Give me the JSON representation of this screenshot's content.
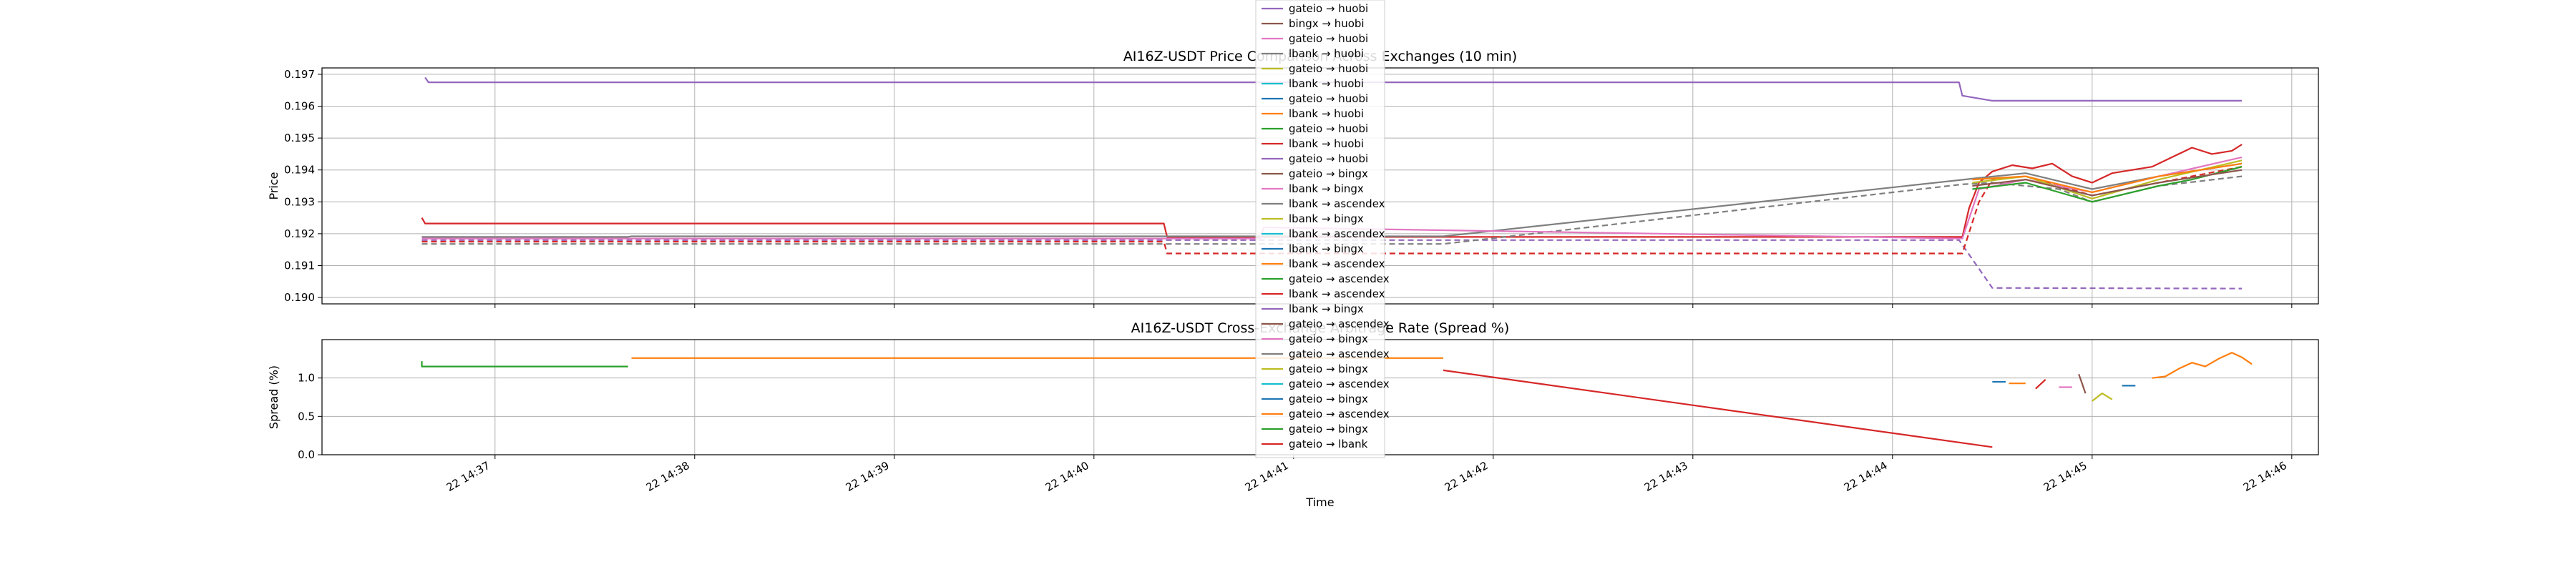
{
  "chart_data": [
    {
      "type": "line",
      "title": "AI16Z-USDT Price Comparison Across Exchanges (10 min)",
      "xlabel": "",
      "ylabel": "Price",
      "ylim": [
        0.1898,
        0.1972
      ],
      "yticks": [
        0.19,
        0.191,
        0.192,
        0.193,
        0.194,
        0.195,
        0.196,
        0.197
      ],
      "ytick_labels": [
        "0.190",
        "0.191",
        "0.192",
        "0.193",
        "0.194",
        "0.195",
        "0.196",
        "0.197"
      ],
      "grid": true,
      "legend": {
        "placement": "upper-center",
        "entries": [
          {
            "label": "gateio → huobi",
            "color": "#9467bd",
            "dash": false
          },
          {
            "label": "bingx → huobi",
            "color": "#8c564b",
            "dash": false
          },
          {
            "label": "gateio → huobi",
            "color": "#e377c2",
            "dash": false
          },
          {
            "label": "lbank → huobi",
            "color": "#7f7f7f",
            "dash": false
          },
          {
            "label": "gateio → huobi",
            "color": "#bcbd22",
            "dash": false
          },
          {
            "label": "lbank → huobi",
            "color": "#17becf",
            "dash": false
          },
          {
            "label": "gateio → huobi",
            "color": "#1f77b4",
            "dash": false
          },
          {
            "label": "lbank → huobi",
            "color": "#ff7f0e",
            "dash": false
          },
          {
            "label": "gateio → huobi",
            "color": "#2ca02c",
            "dash": false
          },
          {
            "label": "lbank → huobi",
            "color": "#d62728",
            "dash": false
          },
          {
            "label": "gateio → huobi",
            "color": "#9467bd",
            "dash": false
          },
          {
            "label": "gateio → bingx",
            "color": "#8c564b",
            "dash": false
          },
          {
            "label": "lbank → bingx",
            "color": "#e377c2",
            "dash": false
          },
          {
            "label": "lbank → ascendex",
            "color": "#7f7f7f",
            "dash": false
          },
          {
            "label": "lbank → bingx",
            "color": "#bcbd22",
            "dash": false
          },
          {
            "label": "lbank → ascendex",
            "color": "#17becf",
            "dash": false
          },
          {
            "label": "lbank → bingx",
            "color": "#1f77b4",
            "dash": false
          },
          {
            "label": "lbank → ascendex",
            "color": "#ff7f0e",
            "dash": false
          },
          {
            "label": "gateio → ascendex",
            "color": "#2ca02c",
            "dash": false
          },
          {
            "label": "lbank → ascendex",
            "color": "#d62728",
            "dash": false
          },
          {
            "label": "lbank → bingx",
            "color": "#9467bd",
            "dash": false
          },
          {
            "label": "gateio → ascendex",
            "color": "#8c564b",
            "dash": false
          },
          {
            "label": "gateio → bingx",
            "color": "#e377c2",
            "dash": false
          },
          {
            "label": "gateio → ascendex",
            "color": "#7f7f7f",
            "dash": false
          },
          {
            "label": "gateio → bingx",
            "color": "#bcbd22",
            "dash": false
          },
          {
            "label": "gateio → ascendex",
            "color": "#17becf",
            "dash": false
          },
          {
            "label": "gateio → bingx",
            "color": "#1f77b4",
            "dash": false
          },
          {
            "label": "gateio → ascendex",
            "color": "#ff7f0e",
            "dash": false
          },
          {
            "label": "gateio → bingx",
            "color": "#2ca02c",
            "dash": false
          },
          {
            "label": "gateio → lbank",
            "color": "#d62728",
            "dash": false
          }
        ]
      },
      "series": [
        {
          "color": "#9467bd",
          "dash": false,
          "points": [
            [
              "14:36:39",
              0.1969
            ],
            [
              "14:36:40",
              0.19675
            ],
            [
              "14:44:20",
              0.19675
            ],
            [
              "14:44:21",
              0.19633
            ],
            [
              "14:44:30",
              0.19617
            ],
            [
              "14:45:45",
              0.19617
            ]
          ]
        },
        {
          "color": "#9467bd",
          "dash": true,
          "points": [
            [
              "14:36:38",
              0.1918
            ],
            [
              "14:41:45",
              0.1918
            ],
            [
              "14:44:20",
              0.1918
            ],
            [
              "14:44:30",
              0.1903
            ],
            [
              "14:45:45",
              0.19028
            ]
          ]
        },
        {
          "color": "#d62728",
          "dash": false,
          "points": [
            [
              "14:36:38",
              0.1925
            ],
            [
              "14:36:39",
              0.19232
            ],
            [
              "14:40:21",
              0.19232
            ],
            [
              "14:40:22",
              0.1919
            ],
            [
              "14:44:21",
              0.1919
            ],
            [
              "14:44:23",
              0.1928
            ],
            [
              "14:44:26",
              0.1936
            ],
            [
              "14:44:30",
              0.19395
            ],
            [
              "14:44:36",
              0.19415
            ],
            [
              "14:44:42",
              0.19405
            ],
            [
              "14:44:48",
              0.1942
            ],
            [
              "14:44:54",
              0.1938
            ],
            [
              "14:45:00",
              0.1936
            ],
            [
              "14:45:06",
              0.1939
            ],
            [
              "14:45:12",
              0.194
            ],
            [
              "14:45:18",
              0.1941
            ],
            [
              "14:45:24",
              0.1944
            ],
            [
              "14:45:30",
              0.1947
            ],
            [
              "14:45:36",
              0.1945
            ],
            [
              "14:45:42",
              0.1946
            ],
            [
              "14:45:45",
              0.1948
            ]
          ]
        },
        {
          "color": "#d62728",
          "dash": true,
          "points": [
            [
              "14:36:38",
              0.19175
            ],
            [
              "14:40:21",
              0.19175
            ],
            [
              "14:40:22",
              0.19138
            ],
            [
              "14:44:21",
              0.19138
            ],
            [
              "14:44:26",
              0.193
            ],
            [
              "14:44:30",
              0.1937
            ],
            [
              "14:44:40",
              0.1938
            ],
            [
              "14:45:00",
              0.1932
            ],
            [
              "14:45:20",
              0.1936
            ],
            [
              "14:45:45",
              0.1941
            ]
          ]
        },
        {
          "color": "#7f7f7f",
          "dash": false,
          "points": [
            [
              "14:36:38",
              0.1919
            ],
            [
              "14:37:40",
              0.1919
            ],
            [
              "14:37:41",
              0.19192
            ],
            [
              "14:41:45",
              0.19192
            ],
            [
              "14:44:26",
              0.19375
            ],
            [
              "14:44:40",
              0.1939
            ],
            [
              "14:45:00",
              0.1934
            ],
            [
              "14:45:20",
              0.1938
            ],
            [
              "14:45:45",
              0.1942
            ]
          ]
        },
        {
          "color": "#7f7f7f",
          "dash": true,
          "points": [
            [
              "14:36:38",
              0.19168
            ],
            [
              "14:41:45",
              0.19168
            ],
            [
              "14:44:21",
              0.19355
            ],
            [
              "14:44:30",
              0.1936
            ],
            [
              "14:44:50",
              0.1934
            ],
            [
              "14:45:00",
              0.193
            ],
            [
              "14:45:20",
              0.1935
            ],
            [
              "14:45:45",
              0.1938
            ]
          ]
        },
        {
          "color": "#e377c2",
          "dash": false,
          "points": [
            [
              "14:36:38",
              0.19185
            ],
            [
              "14:40:50",
              0.19185
            ],
            [
              "14:40:51",
              0.1922
            ],
            [
              "14:44:21",
              0.19185
            ],
            [
              "14:44:26",
              0.1934
            ],
            [
              "14:44:40",
              0.1937
            ],
            [
              "14:45:00",
              0.1933
            ],
            [
              "14:45:20",
              0.1938
            ],
            [
              "14:45:45",
              0.1944
            ]
          ]
        },
        {
          "color": "#bcbd22",
          "dash": false,
          "points": [
            [
              "14:44:24",
              0.1936
            ],
            [
              "14:44:40",
              0.1938
            ],
            [
              "14:45:00",
              0.1931
            ],
            [
              "14:45:20",
              0.1937
            ],
            [
              "14:45:45",
              0.1943
            ]
          ]
        },
        {
          "color": "#2ca02c",
          "dash": false,
          "points": [
            [
              "14:44:24",
              0.1934
            ],
            [
              "14:44:40",
              0.1936
            ],
            [
              "14:45:00",
              0.193
            ],
            [
              "14:45:20",
              0.1935
            ],
            [
              "14:45:30",
              0.1937
            ],
            [
              "14:45:45",
              0.1941
            ]
          ]
        },
        {
          "color": "#ff7f0e",
          "dash": false,
          "points": [
            [
              "14:44:24",
              0.1937
            ],
            [
              "14:44:40",
              0.1938
            ],
            [
              "14:45:00",
              0.1933
            ],
            [
              "14:45:20",
              0.1938
            ],
            [
              "14:45:45",
              0.1942
            ]
          ]
        },
        {
          "color": "#8c564b",
          "dash": false,
          "points": [
            [
              "14:44:24",
              0.1935
            ],
            [
              "14:44:40",
              0.1937
            ],
            [
              "14:45:00",
              0.1932
            ],
            [
              "14:45:20",
              0.1936
            ],
            [
              "14:45:45",
              0.194
            ]
          ]
        }
      ]
    },
    {
      "type": "line",
      "title": "AI16Z-USDT Cross-Exchange Arbitrage Rate (Spread %)",
      "xlabel": "Time",
      "ylabel": "Spread (%)",
      "ylim": [
        0.0,
        1.5
      ],
      "yticks": [
        0.0,
        0.5,
        1.0
      ],
      "ytick_labels": [
        "0.0",
        "0.5",
        "1.0"
      ],
      "xlim": [
        "14:36:08",
        "14:46:08"
      ],
      "xticks": [
        "14:37:00",
        "14:38:00",
        "14:39:00",
        "14:40:00",
        "14:41:00",
        "14:42:00",
        "14:43:00",
        "14:44:00",
        "14:45:00",
        "14:46:00"
      ],
      "xtick_labels": [
        "22 14:37",
        "22 14:38",
        "22 14:39",
        "22 14:40",
        "22 14:41",
        "22 14:42",
        "22 14:43",
        "22 14:44",
        "22 14:45",
        "22 14:46"
      ],
      "grid": true,
      "series": [
        {
          "color": "#2ca02c",
          "dash": false,
          "points": [
            [
              "14:36:38",
              1.22
            ],
            [
              "14:36:38",
              1.15
            ],
            [
              "14:37:40",
              1.15
            ]
          ]
        },
        {
          "color": "#ff7f0e",
          "dash": false,
          "points": [
            [
              "14:37:41",
              1.26
            ],
            [
              "14:41:45",
              1.26
            ]
          ]
        },
        {
          "color": "#d62728",
          "dash": false,
          "points": [
            [
              "14:41:45",
              1.1
            ],
            [
              "14:44:30",
              0.1
            ]
          ]
        },
        {
          "color": "#1f77b4",
          "dash": false,
          "points": [
            [
              "14:44:30",
              0.95
            ],
            [
              "14:44:34",
              0.95
            ]
          ]
        },
        {
          "color": "#ff7f0e",
          "dash": false,
          "points": [
            [
              "14:44:35",
              0.93
            ],
            [
              "14:44:40",
              0.93
            ]
          ]
        },
        {
          "color": "#d62728",
          "dash": false,
          "points": [
            [
              "14:44:43",
              0.86
            ],
            [
              "14:44:46",
              0.98
            ]
          ]
        },
        {
          "color": "#e377c2",
          "dash": false,
          "points": [
            [
              "14:44:50",
              0.88
            ],
            [
              "14:44:54",
              0.88
            ]
          ]
        },
        {
          "color": "#8c564b",
          "dash": false,
          "points": [
            [
              "14:44:56",
              1.05
            ],
            [
              "14:44:58",
              0.8
            ]
          ]
        },
        {
          "color": "#bcbd22",
          "dash": false,
          "points": [
            [
              "14:45:00",
              0.7
            ],
            [
              "14:45:03",
              0.8
            ],
            [
              "14:45:06",
              0.72
            ]
          ]
        },
        {
          "color": "#1f77b4",
          "dash": false,
          "points": [
            [
              "14:45:09",
              0.9
            ],
            [
              "14:45:13",
              0.9
            ]
          ]
        },
        {
          "color": "#ff7f0e",
          "dash": false,
          "points": [
            [
              "14:45:18",
              1.0
            ],
            [
              "14:45:22",
              1.02
            ],
            [
              "14:45:26",
              1.12
            ],
            [
              "14:45:30",
              1.2
            ],
            [
              "14:45:34",
              1.15
            ],
            [
              "14:45:38",
              1.25
            ],
            [
              "14:45:42",
              1.33
            ],
            [
              "14:45:45",
              1.27
            ],
            [
              "14:45:48",
              1.18
            ]
          ]
        }
      ]
    }
  ]
}
